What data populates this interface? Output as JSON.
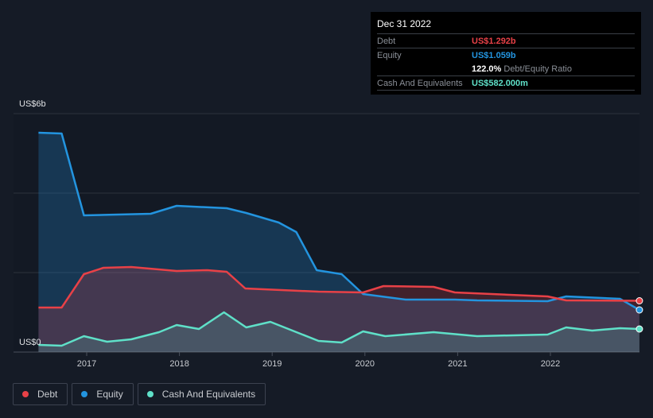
{
  "tooltip": {
    "date": "Dec 31 2022",
    "debt_label": "Debt",
    "debt_value": "US$1.292b",
    "equity_label": "Equity",
    "equity_value": "US$1.059b",
    "ratio_value": "122.0%",
    "ratio_label": "Debt/Equity Ratio",
    "cash_label": "Cash And Equivalents",
    "cash_value": "US$582.000m"
  },
  "colors": {
    "debt": "#e84147",
    "equity": "#2394df",
    "cash": "#5fe0c8"
  },
  "chart_data": {
    "type": "area",
    "title": "",
    "ylabel": "",
    "xlabel": "",
    "ylim": [
      0,
      6
    ],
    "y_tick_labels": {
      "top": "US$6b",
      "bottom": "US$0"
    },
    "x_ticks": [
      "2017",
      "2018",
      "2019",
      "2020",
      "2021",
      "2022"
    ],
    "xlim": [
      2016.2,
      2023.0
    ],
    "legend_placement": "bottom-left",
    "grid": true,
    "series": [
      {
        "name": "Debt",
        "key": "debt",
        "points": [
          [
            2016.48,
            1.12
          ],
          [
            2016.73,
            1.12
          ],
          [
            2016.97,
            1.96
          ],
          [
            2017.18,
            2.12
          ],
          [
            2017.48,
            2.14
          ],
          [
            2017.97,
            2.04
          ],
          [
            2018.3,
            2.06
          ],
          [
            2018.51,
            2.02
          ],
          [
            2018.71,
            1.6
          ],
          [
            2019.5,
            1.52
          ],
          [
            2019.98,
            1.5
          ],
          [
            2020.2,
            1.66
          ],
          [
            2020.74,
            1.64
          ],
          [
            2020.97,
            1.5
          ],
          [
            2021.97,
            1.4
          ],
          [
            2022.17,
            1.3
          ],
          [
            2022.96,
            1.29
          ]
        ]
      },
      {
        "name": "Equity",
        "key": "equity",
        "points": [
          [
            2016.48,
            5.52
          ],
          [
            2016.73,
            5.5
          ],
          [
            2016.97,
            3.44
          ],
          [
            2017.69,
            3.48
          ],
          [
            2017.97,
            3.68
          ],
          [
            2018.51,
            3.62
          ],
          [
            2018.72,
            3.5
          ],
          [
            2019.07,
            3.26
          ],
          [
            2019.26,
            3.02
          ],
          [
            2019.48,
            2.06
          ],
          [
            2019.75,
            1.96
          ],
          [
            2019.98,
            1.46
          ],
          [
            2020.44,
            1.32
          ],
          [
            2020.97,
            1.32
          ],
          [
            2021.21,
            1.3
          ],
          [
            2021.97,
            1.28
          ],
          [
            2022.17,
            1.4
          ],
          [
            2022.75,
            1.34
          ],
          [
            2022.96,
            1.06
          ]
        ]
      },
      {
        "name": "Cash And Equivalents",
        "key": "cash",
        "points": [
          [
            2016.48,
            0.18
          ],
          [
            2016.73,
            0.16
          ],
          [
            2016.97,
            0.4
          ],
          [
            2017.22,
            0.26
          ],
          [
            2017.48,
            0.32
          ],
          [
            2017.78,
            0.5
          ],
          [
            2017.97,
            0.68
          ],
          [
            2018.21,
            0.58
          ],
          [
            2018.48,
            1.0
          ],
          [
            2018.72,
            0.62
          ],
          [
            2018.98,
            0.76
          ],
          [
            2019.24,
            0.52
          ],
          [
            2019.5,
            0.28
          ],
          [
            2019.75,
            0.24
          ],
          [
            2019.98,
            0.52
          ],
          [
            2020.22,
            0.4
          ],
          [
            2020.74,
            0.5
          ],
          [
            2021.21,
            0.4
          ],
          [
            2021.97,
            0.44
          ],
          [
            2022.17,
            0.62
          ],
          [
            2022.45,
            0.54
          ],
          [
            2022.75,
            0.6
          ],
          [
            2022.96,
            0.58
          ]
        ]
      }
    ]
  }
}
